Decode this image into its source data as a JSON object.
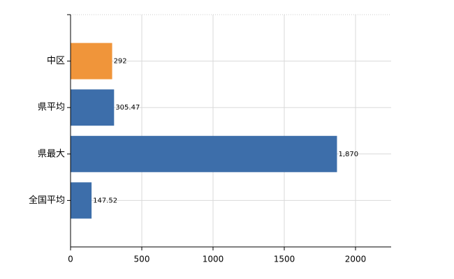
{
  "chart_data": {
    "type": "bar",
    "orientation": "horizontal",
    "categories": [
      "中区",
      "県平均",
      "県最大",
      "全国平均"
    ],
    "values": [
      292,
      305.47,
      1870,
      147.52
    ],
    "value_labels": [
      "292",
      "305.47",
      "1,870",
      "147.52"
    ],
    "colors": [
      "#f0953a",
      "#3d6eaa",
      "#3d6eaa",
      "#3d6eaa"
    ],
    "xlim": [
      0,
      2250
    ],
    "xticks": [
      0,
      500,
      1000,
      1500,
      2000
    ],
    "grid": true
  }
}
